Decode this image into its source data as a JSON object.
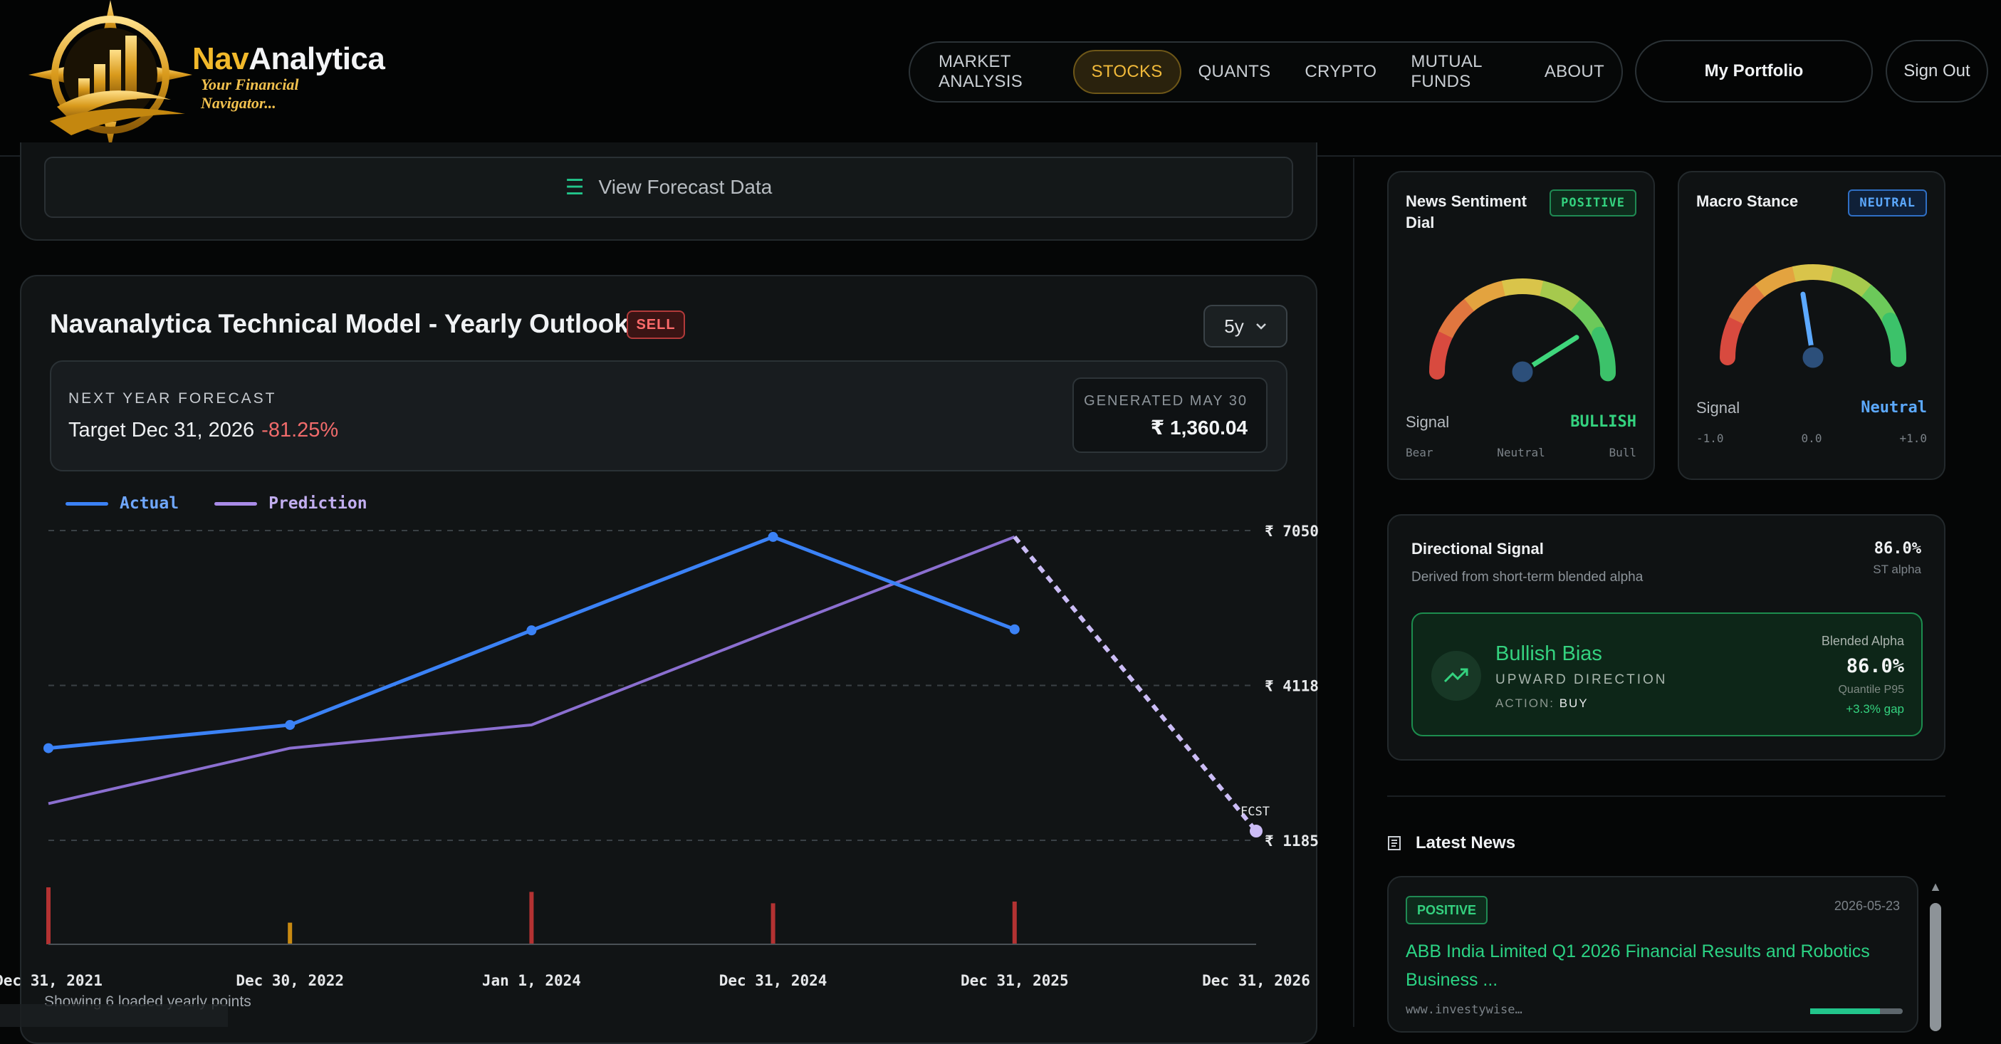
{
  "header": {
    "brand_prefix": "Nav",
    "brand_suffix": "Analytica",
    "tagline": "Your Financial Navigator...",
    "nav": [
      {
        "label": "MARKET ANALYSIS"
      },
      {
        "label": "STOCKS"
      },
      {
        "label": "QUANTS"
      },
      {
        "label": "CRYPTO"
      },
      {
        "label": "MUTUAL FUNDS"
      },
      {
        "label": "ABOUT"
      }
    ],
    "active_nav": "STOCKS",
    "portfolio_label": "My Portfolio",
    "signout_label": "Sign Out"
  },
  "forecast": {
    "view_label": "View Forecast Data"
  },
  "model": {
    "title": "Navanalytica Technical Model - Yearly Outlook",
    "signal_badge": "SELL",
    "range": "5y",
    "next_label": "NEXT YEAR FORECAST",
    "target_label": "Target Dec 31, 2026",
    "target_change": "-81.25%",
    "generated_label": "GENERATED MAY 30",
    "generated_value": "₹ 1,360.04",
    "footnote": "Showing 6 loaded yearly points"
  },
  "chart_data": {
    "type": "line",
    "categories": [
      "Dec 31, 2021",
      "Dec 30, 2022",
      "Jan 1, 2024",
      "Dec 31, 2024",
      "Dec 31, 2025",
      "Dec 31, 2026"
    ],
    "series": [
      {
        "name": "Actual",
        "color": "#3b82f6",
        "values": [
          2930,
          3370,
          5160,
          6930,
          5180,
          null
        ]
      },
      {
        "name": "Prediction",
        "color": "#8b6fd0",
        "values": [
          1880,
          2930,
          3370,
          5160,
          6930,
          1360
        ]
      }
    ],
    "forecast_marker": "FCST",
    "y_ticks": [
      {
        "label": "₹ 7050",
        "value": 7050
      },
      {
        "label": "₹ 4118",
        "value": 4118
      },
      {
        "label": "₹ 1185",
        "value": 1185
      }
    ],
    "ylim": [
      1185,
      7050
    ],
    "volume": [
      {
        "value": 1.0,
        "color": "#b33232"
      },
      {
        "value": 0.38,
        "color": "#c98a12"
      },
      {
        "value": 0.92,
        "color": "#b33232"
      },
      {
        "value": 0.72,
        "color": "#b33232"
      },
      {
        "value": 0.75,
        "color": "#b33232"
      }
    ],
    "grid": "dashed-horizontal"
  },
  "sentiment": {
    "title": "News Sentiment Dial",
    "badge": "POSITIVE",
    "signal_label": "Signal",
    "signal_value": "BULLISH",
    "scale": [
      "Bear",
      "Neutral",
      "Bull"
    ],
    "needle_level": 0.82
  },
  "macro": {
    "title": "Macro Stance",
    "badge": "NEUTRAL",
    "signal_label": "Signal",
    "signal_value": "Neutral",
    "scale": [
      "-1.0",
      "0.0",
      "+1.0"
    ],
    "needle_level": 0.45
  },
  "directional": {
    "title": "Directional Signal",
    "subtitle": "Derived from short-term blended alpha",
    "value": "86.0%",
    "value_label": "ST alpha",
    "bias_title": "Bullish Bias",
    "bias_direction": "UPWARD DIRECTION",
    "action_label": "ACTION:",
    "action_value": "BUY",
    "blend_label": "Blended Alpha",
    "blend_value": "86.0%",
    "quantile": "Quantile P95",
    "gap": "+3.3% gap"
  },
  "news": {
    "header": "Latest News",
    "items": [
      {
        "sentiment": "POSITIVE",
        "date": "2026-05-23",
        "title": "ABB India Limited Q1 2026 Financial Results and Robotics Business ...",
        "source": "www.investywise…",
        "score": 0.75
      }
    ]
  },
  "colors": {
    "accent_gold": "#f2b92b",
    "positive": "#34d27f",
    "negative": "#f06b6b",
    "actual_line": "#3b82f6",
    "prediction_line": "#8b6fd0"
  }
}
